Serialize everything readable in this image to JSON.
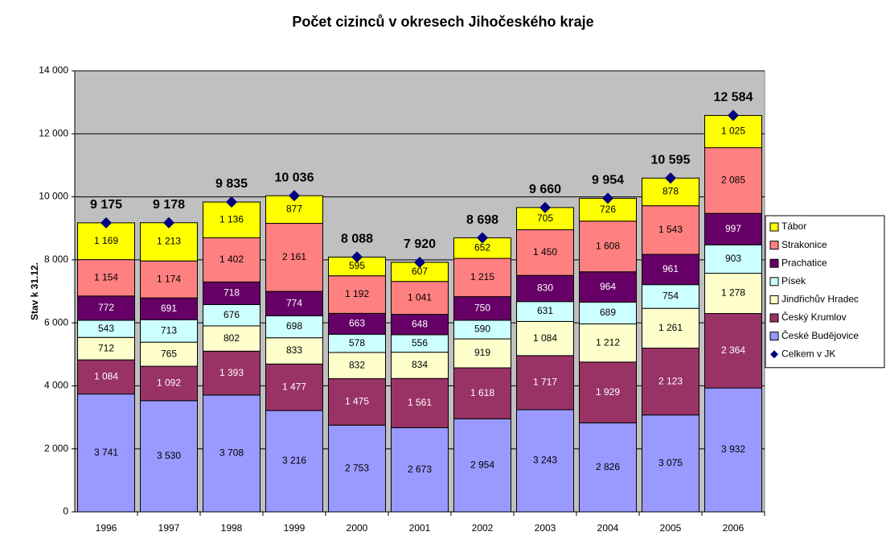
{
  "chart_data": {
    "type": "bar",
    "stacked": true,
    "title": "Počet cizinců v okresech Jihočeského kraje",
    "y_label": "Stav k 31.12.",
    "categories": [
      "1996",
      "1997",
      "1998",
      "1999",
      "2000",
      "2001",
      "2002",
      "2003",
      "2004",
      "2005",
      "2006"
    ],
    "ylim": [
      0,
      14000
    ],
    "yticks": [
      0,
      {
        "value": 2000,
        "label": "2 000"
      },
      {
        "value": 4000,
        "label": "4 000"
      },
      {
        "value": 6000,
        "label": "6 000"
      },
      {
        "value": 8000,
        "label": "8 000"
      },
      {
        "value": 10000,
        "label": "10 000"
      },
      {
        "value": 12000,
        "label": "12 000"
      },
      {
        "value": 14000,
        "label": "14 000"
      }
    ],
    "grid": true,
    "background": "#c0c0c0",
    "legend": "right",
    "series": [
      {
        "name": "České Budějovice",
        "color": "#9999ff",
        "values": [
          3741,
          3530,
          3708,
          3216,
          2753,
          2673,
          2954,
          3243,
          2826,
          3075,
          3932
        ],
        "value_labels": [
          "3 741",
          "3 530",
          "3 708",
          "3 216",
          "2 753",
          "2 673",
          "2 954",
          "3 243",
          "2 826",
          "3 075",
          "3 932"
        ]
      },
      {
        "name": "Český Krumlov",
        "color": "#993366",
        "values": [
          1084,
          1092,
          1393,
          1477,
          1475,
          1561,
          1618,
          1717,
          1929,
          2123,
          2364
        ],
        "value_labels": [
          "1 084",
          "1 092",
          "1 393",
          "1 477",
          "1 475",
          "1 561",
          "1 618",
          "1 717",
          "1 929",
          "2 123",
          "2 364"
        ]
      },
      {
        "name": "Jindřichův Hradec",
        "color": "#ffffcc",
        "values": [
          712,
          765,
          802,
          833,
          832,
          834,
          919,
          1084,
          1212,
          1261,
          1278
        ],
        "value_labels": [
          "712",
          "765",
          "802",
          "833",
          "832",
          "834",
          "919",
          "1 084",
          "1 212",
          "1 261",
          "1 278"
        ]
      },
      {
        "name": "Písek",
        "color": "#ccffff",
        "values": [
          543,
          713,
          676,
          698,
          578,
          556,
          590,
          631,
          689,
          754,
          903
        ]
      },
      {
        "name": "Prachatice",
        "color": "#660066",
        "values": [
          772,
          691,
          718,
          774,
          663,
          648,
          750,
          830,
          964,
          961,
          997
        ]
      },
      {
        "name": "Strakonice",
        "color": "#ff8080",
        "values": [
          1154,
          1174,
          1402,
          2161,
          1192,
          1041,
          1215,
          1450,
          1608,
          1543,
          2085
        ],
        "value_labels": [
          "1 154",
          "1 174",
          "1 402",
          "2 161",
          "1 192",
          "1 041",
          "1 215",
          "1 450",
          "1 608",
          "1 543",
          "2 085"
        ]
      },
      {
        "name": "Tábor",
        "color": "#ffff00",
        "values": [
          1169,
          1213,
          1136,
          877,
          595,
          607,
          652,
          705,
          726,
          878,
          1025
        ],
        "value_labels": [
          "1 169",
          "1 213",
          "1 136",
          "877",
          "595",
          "607",
          "652",
          "705",
          "726",
          "878",
          "1 025"
        ]
      },
      {
        "name": "Celkem v JK",
        "type": "scatter",
        "marker": "diamond",
        "color": "#000080",
        "values": [
          9175,
          9178,
          9835,
          10036,
          8088,
          7920,
          8698,
          9660,
          9954,
          10595,
          12584
        ],
        "value_labels": [
          "9 175",
          "9 178",
          "9 835",
          "10 036",
          "8 088",
          "7 920",
          "8 698",
          "9 660",
          "9 954",
          "10 595",
          "12 584"
        ]
      }
    ]
  }
}
